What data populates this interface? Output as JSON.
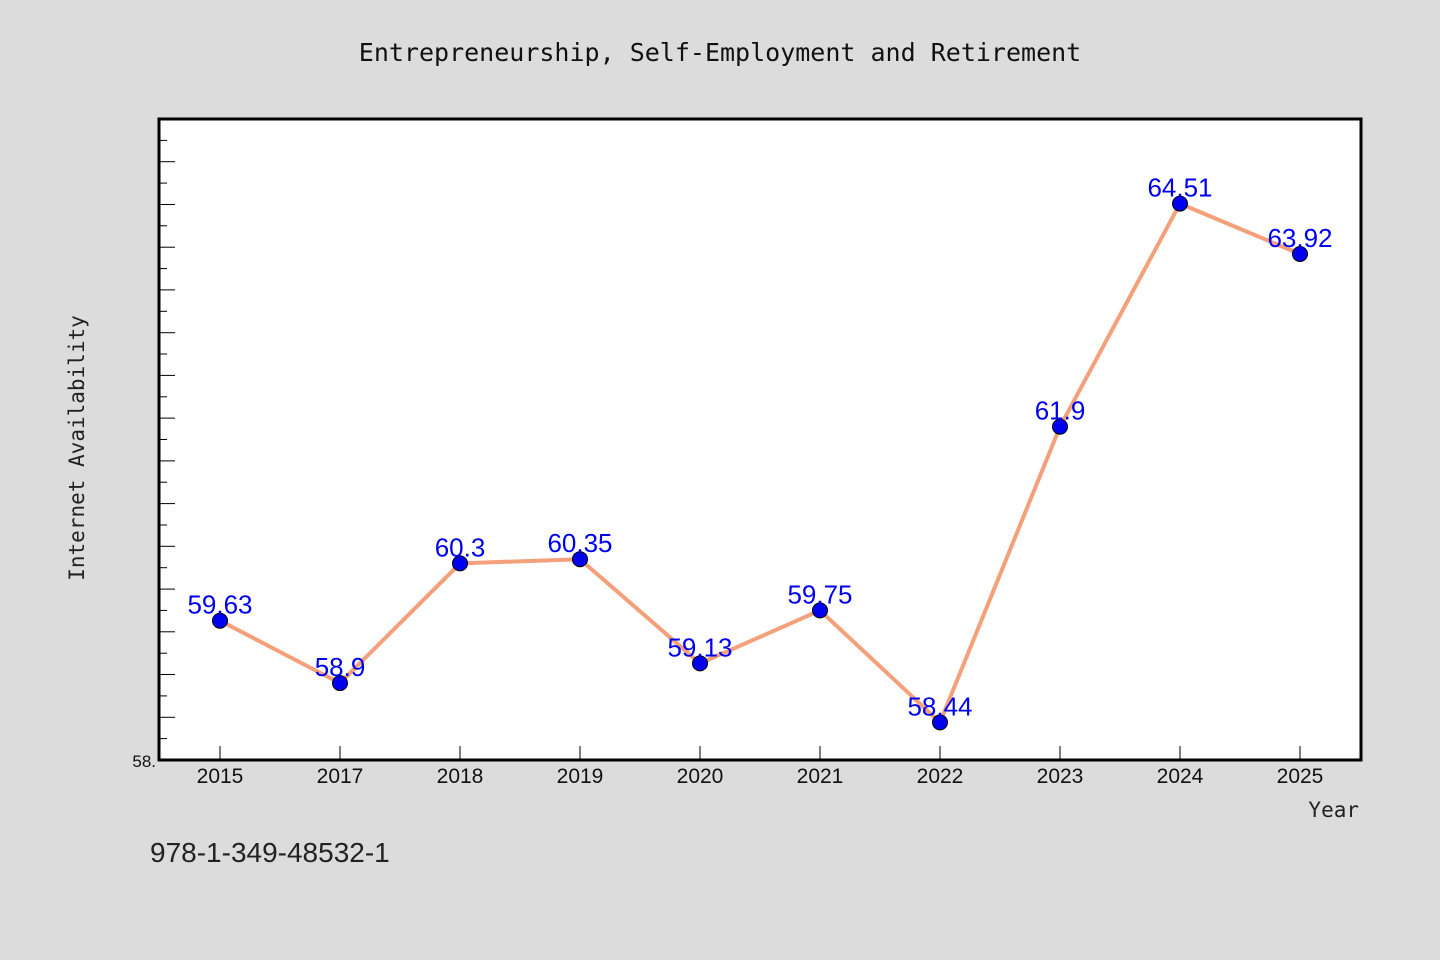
{
  "chart_data": {
    "type": "line",
    "title": "Entrepreneurship, Self-Employment and Retirement",
    "xlabel": "Year",
    "ylabel": "Internet Availability",
    "categories": [
      "2015",
      "2017",
      "2018",
      "2019",
      "2020",
      "2021",
      "2022",
      "2023",
      "2024",
      "2025"
    ],
    "series": [
      {
        "values": [
          59.63,
          58.9,
          60.3,
          60.35,
          59.13,
          59.75,
          58.44,
          61.9,
          64.51,
          63.92
        ],
        "data_labels": [
          "59.63",
          "58.9",
          "60.3",
          "60.35",
          "59.13",
          "59.75",
          "58.44",
          "61.9",
          "64.51",
          "63.92"
        ]
      }
    ],
    "ylim": [
      58.0,
      65.5
    ],
    "ytick_labels": [
      "58."
    ],
    "grid": false,
    "colors": {
      "line": "#f4a07a",
      "marker": "#0000ee",
      "label": "#0000ee",
      "background": "#dcdcdc",
      "plot_background": "#ffffff"
    }
  },
  "footnote": "978-1-349-48532-1"
}
